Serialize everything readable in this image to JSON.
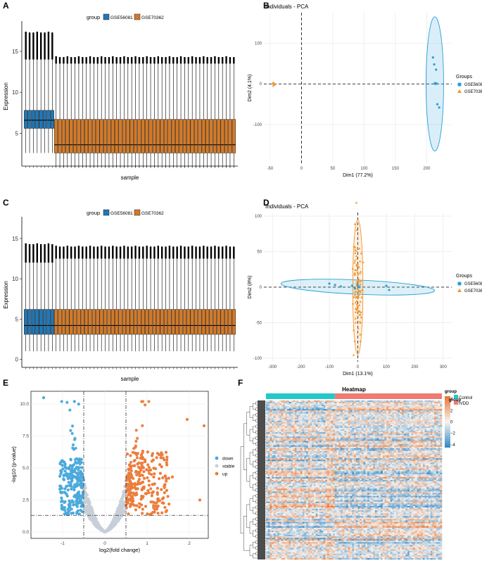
{
  "chart_data": [
    {
      "panel": "A",
      "type": "box",
      "legend_title": "group",
      "legend_position": "top",
      "legend": [
        "GSE56081",
        "GSE70362"
      ],
      "colors": {
        "GSE56081": "#2377b4",
        "GSE70362": "#d37a28"
      },
      "xlabel": "sample",
      "ylabel": "Expression",
      "ylim": [
        1,
        18
      ],
      "yticks": [
        5,
        10,
        15
      ],
      "series": [
        {
          "name": "GSE56081",
          "n_boxes": 8,
          "q1": 5.6,
          "median": 6.6,
          "q3": 7.8,
          "whisker_low": 2.6,
          "whisker_high": 14.0,
          "outlier_max": 17.3
        },
        {
          "name": "GSE70362",
          "n_boxes": 48,
          "q1": 2.6,
          "median": 3.6,
          "q3": 6.7,
          "whisker_low": 0.8,
          "whisker_high": 13.5,
          "outlier_max": 14.3
        }
      ]
    },
    {
      "panel": "B",
      "type": "scatter",
      "title": "Individuals - PCA",
      "xlabel": "Dim1 (77.2%)",
      "ylabel": "Dim2 (4.1%)",
      "xlim": [
        -60,
        240
      ],
      "ylim": [
        -195,
        175
      ],
      "xticks": [
        -50,
        0,
        50,
        100,
        150,
        200
      ],
      "yticks": [
        -100,
        0,
        100
      ],
      "legend_title": "Groups",
      "legend": [
        "GSE56081",
        "GSE70362"
      ],
      "points": {
        "GSE56081": [
          [
            210,
            65
          ],
          [
            212,
            48
          ],
          [
            215,
            35
          ],
          [
            214,
            0
          ],
          [
            217,
            -50
          ],
          [
            220,
            -58
          ],
          [
            213,
            2
          ],
          [
            216,
            1
          ]
        ],
        "GSE70362": [
          [
            -45,
            -5
          ],
          [
            -44,
            2
          ],
          [
            -46,
            1
          ],
          [
            -45,
            3
          ],
          [
            -43,
            -2
          ],
          [
            -44,
            -1
          ],
          [
            -45,
            0
          ]
        ]
      },
      "ellipse": {
        "group": "GSE56081",
        "cx": 213,
        "cy": 0,
        "semi_width": 14,
        "semi_height": 165
      }
    },
    {
      "panel": "C",
      "type": "box",
      "legend_title": "group",
      "legend_position": "top",
      "legend": [
        "GSE56081",
        "GSE70362"
      ],
      "colors": {
        "GSE56081": "#2377b4",
        "GSE70362": "#d37a28"
      },
      "xlabel": "sample",
      "ylabel": "Expression",
      "ylim": [
        -1,
        17
      ],
      "yticks": [
        0,
        5,
        10,
        15
      ],
      "series": [
        {
          "name": "GSE56081",
          "n_boxes": 8,
          "q1": 3.1,
          "median": 4.2,
          "q3": 6.2,
          "whisker_low": 1.0,
          "whisker_high": 12.0,
          "outlier_max": 14.3
        },
        {
          "name": "GSE70362",
          "n_boxes": 48,
          "q1": 3.1,
          "median": 4.2,
          "q3": 6.2,
          "whisker_low": 1.0,
          "whisker_high": 12.5,
          "outlier_max": 14.0
        }
      ]
    },
    {
      "panel": "D",
      "type": "scatter",
      "title": "Individuals - PCA",
      "xlabel": "Dim1 (13.1%)",
      "ylabel": "Dim2 (8%)",
      "xlim": [
        -330,
        330
      ],
      "ylim": [
        -105,
        105
      ],
      "xticks": [
        -300,
        -200,
        -100,
        0,
        100,
        200,
        300
      ],
      "yticks": [
        -100,
        -50,
        0,
        50,
        100
      ],
      "legend_title": "Groups",
      "legend": [
        "GSE56081",
        "GSE70362"
      ],
      "ellipses": [
        {
          "group": "GSE56081",
          "cx": 0,
          "cy": 0,
          "semi_major": 270,
          "semi_minor": 10,
          "angle_data": -3
        },
        {
          "group": "GSE70362",
          "cx": 0,
          "cy": 0,
          "semi_width": 18,
          "semi_height": 95
        }
      ]
    },
    {
      "panel": "E",
      "type": "scatter",
      "subtype": "volcano",
      "xlabel": "log2(fold change)",
      "ylabel": "-log10 (p-value)",
      "xlim": [
        -1.75,
        2.45
      ],
      "ylim": [
        -0.5,
        11
      ],
      "xticks": [
        -1,
        0,
        1,
        2
      ],
      "yticks": [
        0.0,
        2.5,
        5.0,
        7.5,
        10.0
      ],
      "yticklabels": [
        "0.0",
        "2.5",
        "5.0",
        "7.5",
        "10.0"
      ],
      "fc_cutoffs": [
        -0.5,
        0.5
      ],
      "p_cutoff": 1.3,
      "legend": [
        "down",
        "stable",
        "up"
      ],
      "colors": {
        "down": "#4aa9db",
        "stable": "#c8cfd9",
        "up": "#ec7d3c"
      },
      "labeled_points": [
        [
          -1.45,
          10.5
        ],
        [
          -0.72,
          10.2
        ],
        [
          -0.62,
          10.0
        ],
        [
          2.35,
          8.3
        ],
        [
          1.95,
          8.8
        ],
        [
          2.25,
          2.5
        ],
        [
          1.6,
          4.3
        ]
      ]
    },
    {
      "panel": "F",
      "type": "heatmap",
      "title": "Heatmap",
      "annotation_title": "group",
      "annotation_legend": [
        "Control",
        "IVDD"
      ],
      "annotation_colors": {
        "Control": "#23c8c8",
        "IVDD": "#ef7b73"
      },
      "color_scale_ticks": [
        4,
        2,
        0,
        -2,
        -4
      ],
      "color_scale_labels": [
        "4",
        "2",
        "0",
        "−2",
        "−4"
      ],
      "color_low": "#2f86c6",
      "color_mid": "#f6f4f2",
      "color_high": "#e8742f",
      "n_control": 36,
      "n_ivdd": 56
    }
  ],
  "panel_labels": {
    "a": "A",
    "b": "B",
    "c": "C",
    "d": "D",
    "e": "E",
    "f": "F"
  }
}
